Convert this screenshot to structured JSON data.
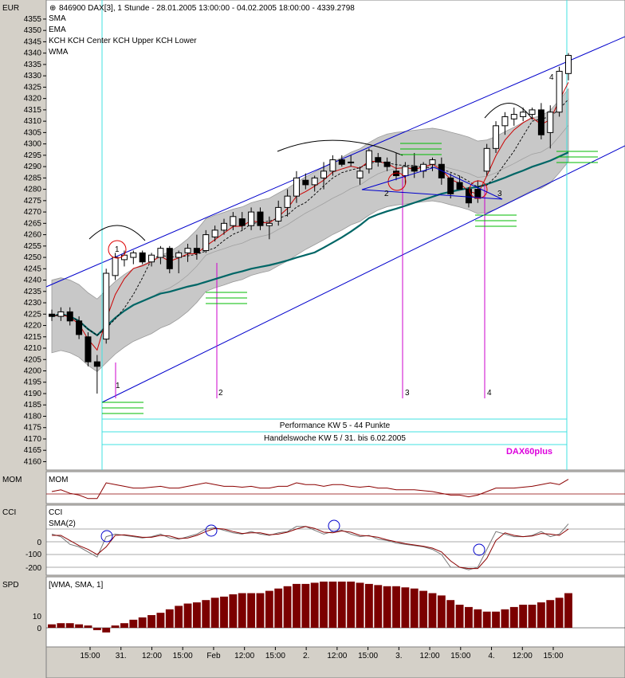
{
  "header": {
    "currency": "EUR",
    "title": "846900  DAX[3], 1 Stunde - 28.01.2005 13:00:00 - 04.02.2005 18:00:00 - 4339.2798"
  },
  "legend": [
    {
      "label": "SMA",
      "color": "#006666"
    },
    {
      "label": "EMA",
      "color": "#cc0000"
    },
    {
      "label": "KCH KCH Center KCH Upper KCH Lower",
      "color": "#888888"
    },
    {
      "label": "WMA",
      "color": "#000000"
    }
  ],
  "colors": {
    "chart_bg": "#ffffff",
    "panel_bg": "#d4d0c8",
    "band_fill": "#c8c8c8",
    "sma": "#006666",
    "ema": "#cc0000",
    "wma": "#000000",
    "channel": "#0000cc",
    "vline_cyan": "#40e0e0",
    "marker_magenta": "#cc00cc",
    "box_green": "#00bb00",
    "circle_red": "#dd0000",
    "circle_blue": "#0000cc",
    "mom_line": "#8b0000",
    "cci_line": "#777777",
    "spd_bar": "#7b0000",
    "brand": "#dd00dd"
  },
  "annotations": {
    "performance": "Performance KW 5 - 44 Punkte",
    "handelswoche": "Handelswoche KW 5 / 31. bis 6.02.2005",
    "brand": "DAX60plus",
    "numbers": [
      "1",
      "2",
      "3",
      "4"
    ]
  },
  "panes": {
    "mom": {
      "label": "MOM",
      "indicator": "MOM"
    },
    "cci": {
      "label": "CCI",
      "indicator": "CCI",
      "indicator2": "SMA(2)",
      "ticks": [
        "0",
        "-100",
        "-200"
      ]
    },
    "spd": {
      "label": "SPD",
      "indicator": "[WMA, SMA, 1]",
      "ticks": [
        "10",
        "0"
      ]
    }
  },
  "chart_data": {
    "type": "candlestick",
    "y_ticks": [
      4355,
      4350,
      4345,
      4340,
      4335,
      4330,
      4325,
      4320,
      4315,
      4310,
      4305,
      4300,
      4295,
      4290,
      4285,
      4280,
      4275,
      4270,
      4265,
      4260,
      4255,
      4250,
      4245,
      4240,
      4235,
      4230,
      4225,
      4220,
      4215,
      4210,
      4205,
      4200,
      4195,
      4190,
      4185,
      4180,
      4175,
      4170,
      4165,
      4160
    ],
    "ylim": [
      4157,
      4362
    ],
    "x_labels": [
      "15:00",
      "31.",
      "12:00",
      "15:00",
      "Feb",
      "12:00",
      "15:00",
      "2.",
      "12:00",
      "15:00",
      "3.",
      "12:00",
      "15:00",
      "4.",
      "12:00",
      "15:00"
    ],
    "candles": [
      {
        "o": 4225,
        "h": 4227,
        "l": 4222,
        "c": 4224
      },
      {
        "o": 4224,
        "h": 4228,
        "l": 4222,
        "c": 4226
      },
      {
        "o": 4226,
        "h": 4228,
        "l": 4220,
        "c": 4222
      },
      {
        "o": 4222,
        "h": 4224,
        "l": 4214,
        "c": 4216
      },
      {
        "o": 4215,
        "h": 4217,
        "l": 4202,
        "c": 4204
      },
      {
        "o": 4204,
        "h": 4207,
        "l": 4190,
        "c": 4202
      },
      {
        "o": 4214,
        "h": 4245,
        "l": 4212,
        "c": 4243
      },
      {
        "o": 4242,
        "h": 4252,
        "l": 4240,
        "c": 4250
      },
      {
        "o": 4249,
        "h": 4253,
        "l": 4246,
        "c": 4251
      },
      {
        "o": 4250,
        "h": 4253,
        "l": 4247,
        "c": 4252
      },
      {
        "o": 4252,
        "h": 4253,
        "l": 4247,
        "c": 4248
      },
      {
        "o": 4248,
        "h": 4252,
        "l": 4246,
        "c": 4251
      },
      {
        "o": 4250,
        "h": 4255,
        "l": 4247,
        "c": 4254
      },
      {
        "o": 4254,
        "h": 4255,
        "l": 4243,
        "c": 4245
      },
      {
        "o": 4250,
        "h": 4253,
        "l": 4243,
        "c": 4252
      },
      {
        "o": 4252,
        "h": 4256,
        "l": 4248,
        "c": 4254
      },
      {
        "o": 4254,
        "h": 4260,
        "l": 4249,
        "c": 4252
      },
      {
        "o": 4253,
        "h": 4262,
        "l": 4252,
        "c": 4260
      },
      {
        "o": 4259,
        "h": 4264,
        "l": 4257,
        "c": 4262
      },
      {
        "o": 4262,
        "h": 4267,
        "l": 4260,
        "c": 4265
      },
      {
        "o": 4264,
        "h": 4270,
        "l": 4262,
        "c": 4268
      },
      {
        "o": 4267,
        "h": 4270,
        "l": 4262,
        "c": 4264
      },
      {
        "o": 4264,
        "h": 4272,
        "l": 4262,
        "c": 4270
      },
      {
        "o": 4270,
        "h": 4272,
        "l": 4262,
        "c": 4264
      },
      {
        "o": 4264,
        "h": 4268,
        "l": 4258,
        "c": 4265
      },
      {
        "o": 4266,
        "h": 4275,
        "l": 4264,
        "c": 4272
      },
      {
        "o": 4272,
        "h": 4280,
        "l": 4268,
        "c": 4277
      },
      {
        "o": 4277,
        "h": 4288,
        "l": 4274,
        "c": 4285
      },
      {
        "o": 4284,
        "h": 4287,
        "l": 4280,
        "c": 4282
      },
      {
        "o": 4282,
        "h": 4286,
        "l": 4279,
        "c": 4285
      },
      {
        "o": 4285,
        "h": 4292,
        "l": 4280,
        "c": 4288
      },
      {
        "o": 4288,
        "h": 4295,
        "l": 4286,
        "c": 4293
      },
      {
        "o": 4293,
        "h": 4295,
        "l": 4290,
        "c": 4291
      },
      {
        "o": 4292,
        "h": 4295,
        "l": 4290,
        "c": 4292
      },
      {
        "o": 4285,
        "h": 4290,
        "l": 4282,
        "c": 4288
      },
      {
        "o": 4289,
        "h": 4298,
        "l": 4287,
        "c": 4297
      },
      {
        "o": 4294,
        "h": 4296,
        "l": 4290,
        "c": 4292
      },
      {
        "o": 4292,
        "h": 4294,
        "l": 4288,
        "c": 4290
      },
      {
        "o": 4288,
        "h": 4296,
        "l": 4284,
        "c": 4286
      },
      {
        "o": 4286,
        "h": 4292,
        "l": 4282,
        "c": 4290
      },
      {
        "o": 4290,
        "h": 4296,
        "l": 4285,
        "c": 4288
      },
      {
        "o": 4288,
        "h": 4292,
        "l": 4285,
        "c": 4291
      },
      {
        "o": 4291,
        "h": 4294,
        "l": 4288,
        "c": 4293
      },
      {
        "o": 4291,
        "h": 4294,
        "l": 4282,
        "c": 4285
      },
      {
        "o": 4285,
        "h": 4287,
        "l": 4276,
        "c": 4278
      },
      {
        "o": 4283,
        "h": 4286,
        "l": 4280,
        "c": 4280
      },
      {
        "o": 4280,
        "h": 4281,
        "l": 4272,
        "c": 4274
      },
      {
        "o": 4280,
        "h": 4284,
        "l": 4274,
        "c": 4276
      },
      {
        "o": 4288,
        "h": 4300,
        "l": 4286,
        "c": 4298
      },
      {
        "o": 4298,
        "h": 4310,
        "l": 4296,
        "c": 4308
      },
      {
        "o": 4308,
        "h": 4314,
        "l": 4304,
        "c": 4312
      },
      {
        "o": 4311,
        "h": 4316,
        "l": 4308,
        "c": 4313
      },
      {
        "o": 4312,
        "h": 4316,
        "l": 4310,
        "c": 4314
      },
      {
        "o": 4313,
        "h": 4316,
        "l": 4311,
        "c": 4315
      },
      {
        "o": 4315,
        "h": 4318,
        "l": 4302,
        "c": 4304
      },
      {
        "o": 4305,
        "h": 4317,
        "l": 4298,
        "c": 4314
      },
      {
        "o": 4314,
        "h": 4334,
        "l": 4312,
        "c": 4332
      },
      {
        "o": 4331,
        "h": 4340,
        "l": 4328,
        "c": 4339
      }
    ],
    "spd_values": [
      3,
      4,
      4,
      3,
      2,
      -2,
      -4,
      2,
      4,
      7,
      9,
      11,
      13,
      16,
      19,
      21,
      22,
      24,
      26,
      27,
      29,
      30,
      30,
      30,
      32,
      34,
      36,
      38,
      38,
      39,
      40,
      40,
      40,
      40,
      39,
      38,
      37,
      36,
      36,
      35,
      34,
      32,
      30,
      28,
      24,
      20,
      18,
      16,
      14,
      14,
      16,
      18,
      20,
      20,
      22,
      24,
      26,
      30
    ],
    "mom_values": [
      0,
      2,
      -2,
      -4,
      -8,
      -8,
      10,
      8,
      6,
      4,
      4,
      5,
      6,
      4,
      4,
      6,
      8,
      10,
      8,
      6,
      6,
      5,
      6,
      4,
      4,
      6,
      6,
      10,
      8,
      8,
      6,
      8,
      8,
      6,
      5,
      6,
      4,
      4,
      2,
      2,
      2,
      1,
      0,
      -2,
      -4,
      -4,
      -6,
      -4,
      0,
      4,
      4,
      4,
      5,
      6,
      8,
      10,
      8,
      14
    ],
    "cci_values": [
      60,
      40,
      -20,
      -40,
      -80,
      -120,
      40,
      60,
      50,
      40,
      30,
      40,
      60,
      30,
      20,
      40,
      60,
      100,
      110,
      90,
      70,
      60,
      80,
      60,
      50,
      70,
      80,
      120,
      120,
      90,
      60,
      80,
      90,
      60,
      40,
      50,
      20,
      10,
      -10,
      -20,
      -30,
      -40,
      -60,
      -100,
      -200,
      -200,
      -220,
      -200,
      -60,
      80,
      60,
      40,
      40,
      50,
      80,
      40,
      60,
      140
    ],
    "cci_sma_values": [
      50,
      50,
      10,
      -30,
      -60,
      -100,
      -40,
      50,
      55,
      45,
      35,
      35,
      50,
      45,
      25,
      30,
      50,
      80,
      105,
      100,
      80,
      65,
      70,
      70,
      55,
      60,
      75,
      100,
      120,
      105,
      75,
      70,
      85,
      75,
      50,
      45,
      35,
      15,
      0,
      -15,
      -25,
      -35,
      -50,
      -80,
      -150,
      -200,
      -210,
      -210,
      -130,
      10,
      70,
      50,
      40,
      45,
      65,
      60,
      50,
      100
    ]
  }
}
